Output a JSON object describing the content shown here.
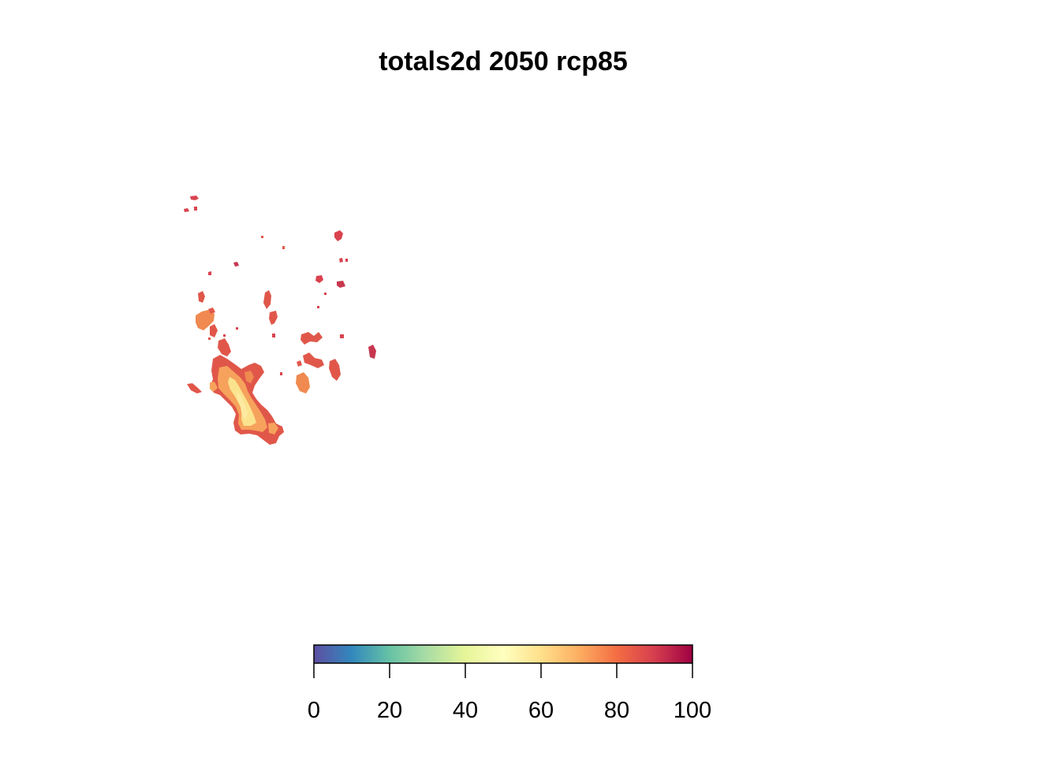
{
  "title": "totals2d 2050 rcp85",
  "legend": {
    "min": 0,
    "max": 100,
    "ticks": [
      {
        "value": 0,
        "label": "0"
      },
      {
        "value": 20,
        "label": "20"
      },
      {
        "value": 40,
        "label": "40"
      },
      {
        "value": 60,
        "label": "60"
      },
      {
        "value": 80,
        "label": "80"
      },
      {
        "value": 100,
        "label": "100"
      }
    ],
    "palette": [
      "#5E4FA2",
      "#3288BD",
      "#66C2A5",
      "#ABDDA4",
      "#E6F598",
      "#FFFFBF",
      "#FEE08B",
      "#FDAE61",
      "#F46D43",
      "#D53E4F",
      "#9E0142"
    ]
  },
  "map": {
    "background": "#ffffff",
    "region_colors": {
      "low_value": "#FBE38E",
      "mid_value": "#F6A25C",
      "high_value": "#E0574A",
      "very_high": "#C7374E"
    }
  }
}
